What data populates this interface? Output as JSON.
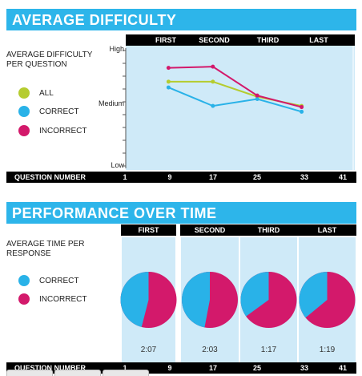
{
  "difficulty": {
    "header": "AVERAGE DIFFICULTY",
    "side_label": "AVERAGE DIFFICULTY PER QUESTION",
    "legend": [
      {
        "label": "ALL",
        "color": "#b5cc2f",
        "icon": "legend-dot-all"
      },
      {
        "label": "CORRECT",
        "color": "#29b2e8",
        "icon": "legend-dot-correct"
      },
      {
        "label": "INCORRECT",
        "color": "#d3196b",
        "icon": "legend-dot-incorrect"
      }
    ],
    "columns": [
      "FIRST",
      "SECOND",
      "THIRD",
      "LAST"
    ],
    "y_labels": {
      "high": "High",
      "medium": "Medium",
      "low": "Low"
    },
    "question_label": "QUESTION NUMBER",
    "question_numbers": [
      "1",
      "9",
      "17",
      "25",
      "33",
      "41"
    ]
  },
  "performance": {
    "header": "PERFORMANCE OVER TIME",
    "side_label": "AVERAGE TIME PER RESPONSE",
    "legend": [
      {
        "label": "CORRECT",
        "color": "#29b2e8",
        "icon": "legend-dot-correct"
      },
      {
        "label": "INCORRECT",
        "color": "#d3196b",
        "icon": "legend-dot-incorrect"
      }
    ],
    "columns": [
      "FIRST",
      "SECOND",
      "THIRD",
      "LAST"
    ],
    "times": [
      "2:07",
      "2:03",
      "1:17",
      "1:19"
    ],
    "question_label": "QUESTION NUMBER",
    "question_numbers": [
      "1",
      "9",
      "17",
      "25",
      "33",
      "41"
    ]
  },
  "chart_data": [
    {
      "type": "line",
      "x": [
        9,
        17,
        25,
        33
      ],
      "xlim": [
        1,
        41
      ],
      "ylim": [
        0,
        1
      ],
      "y_ticks": [
        "Low",
        "Medium",
        "High"
      ],
      "series": [
        {
          "name": "ALL",
          "color": "#b5cc2f",
          "values": [
            0.73,
            0.73,
            0.6,
            0.52
          ]
        },
        {
          "name": "CORRECT",
          "color": "#29b2e8",
          "values": [
            0.68,
            0.52,
            0.58,
            0.47
          ]
        },
        {
          "name": "INCORRECT",
          "color": "#d3196b",
          "values": [
            0.85,
            0.86,
            0.61,
            0.51
          ]
        }
      ]
    },
    {
      "type": "pie",
      "categories": [
        "FIRST",
        "SECOND",
        "THIRD",
        "LAST"
      ],
      "labels": [
        "2:07",
        "2:03",
        "1:17",
        "1:19"
      ],
      "series": [
        {
          "name": "CORRECT",
          "color": "#29b2e8",
          "values": [
            0.46,
            0.47,
            0.35,
            0.36
          ]
        },
        {
          "name": "INCORRECT",
          "color": "#d3196b",
          "values": [
            0.54,
            0.53,
            0.65,
            0.64
          ]
        }
      ]
    }
  ]
}
